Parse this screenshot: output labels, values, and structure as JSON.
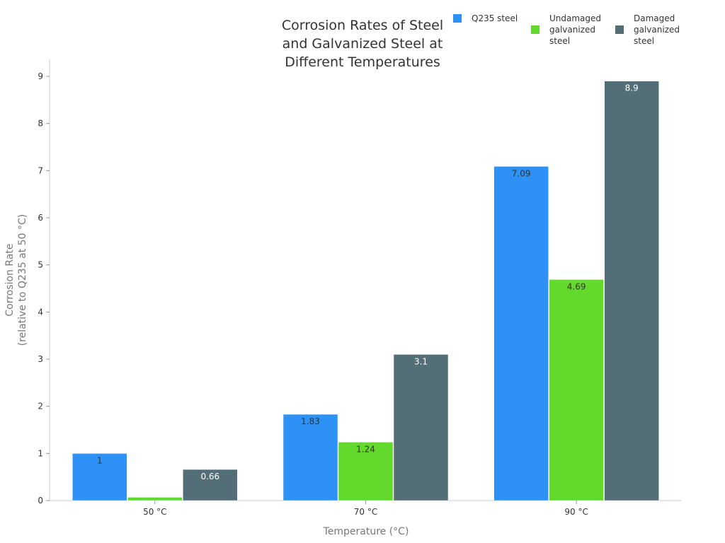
{
  "chart_data": {
    "type": "bar",
    "title_lines": [
      "Corrosion Rates of Steel",
      "and Galvanized Steel at",
      "Different Temperatures"
    ],
    "xlabel": "Temperature (°C)",
    "ylabel_lines": [
      "Corrosion Rate",
      "(relative to Q235 at 50 °C)"
    ],
    "categories": [
      "50 °C",
      "70 °C",
      "90 °C"
    ],
    "ylim": [
      0,
      9
    ],
    "yticks": [
      0,
      1,
      2,
      3,
      4,
      5,
      6,
      7,
      8,
      9
    ],
    "grid": false,
    "legend_position": "top-right",
    "series": [
      {
        "name": "Q235 steel",
        "legend_lines": [
          "Q235 steel"
        ],
        "color": "#2d91f5",
        "label_color": "#333333",
        "values": [
          1,
          1.83,
          7.09
        ],
        "labels": [
          "1",
          "1.83",
          "7.09"
        ]
      },
      {
        "name": "Undamaged galvanized steel",
        "legend_lines": [
          "Undamaged",
          "galvanized",
          "steel"
        ],
        "color": "#63d92b",
        "label_color": "#333333",
        "values": [
          0.07,
          1.24,
          4.69
        ],
        "labels": [
          "",
          "1.24",
          "4.69"
        ]
      },
      {
        "name": "Damaged galvanized steel",
        "legend_lines": [
          "Damaged",
          "galvanized",
          "steel"
        ],
        "color": "#546e78",
        "label_color": "#ffffff",
        "values": [
          0.66,
          3.1,
          8.9
        ],
        "labels": [
          "0.66",
          "3.1",
          "8.9"
        ]
      }
    ]
  }
}
